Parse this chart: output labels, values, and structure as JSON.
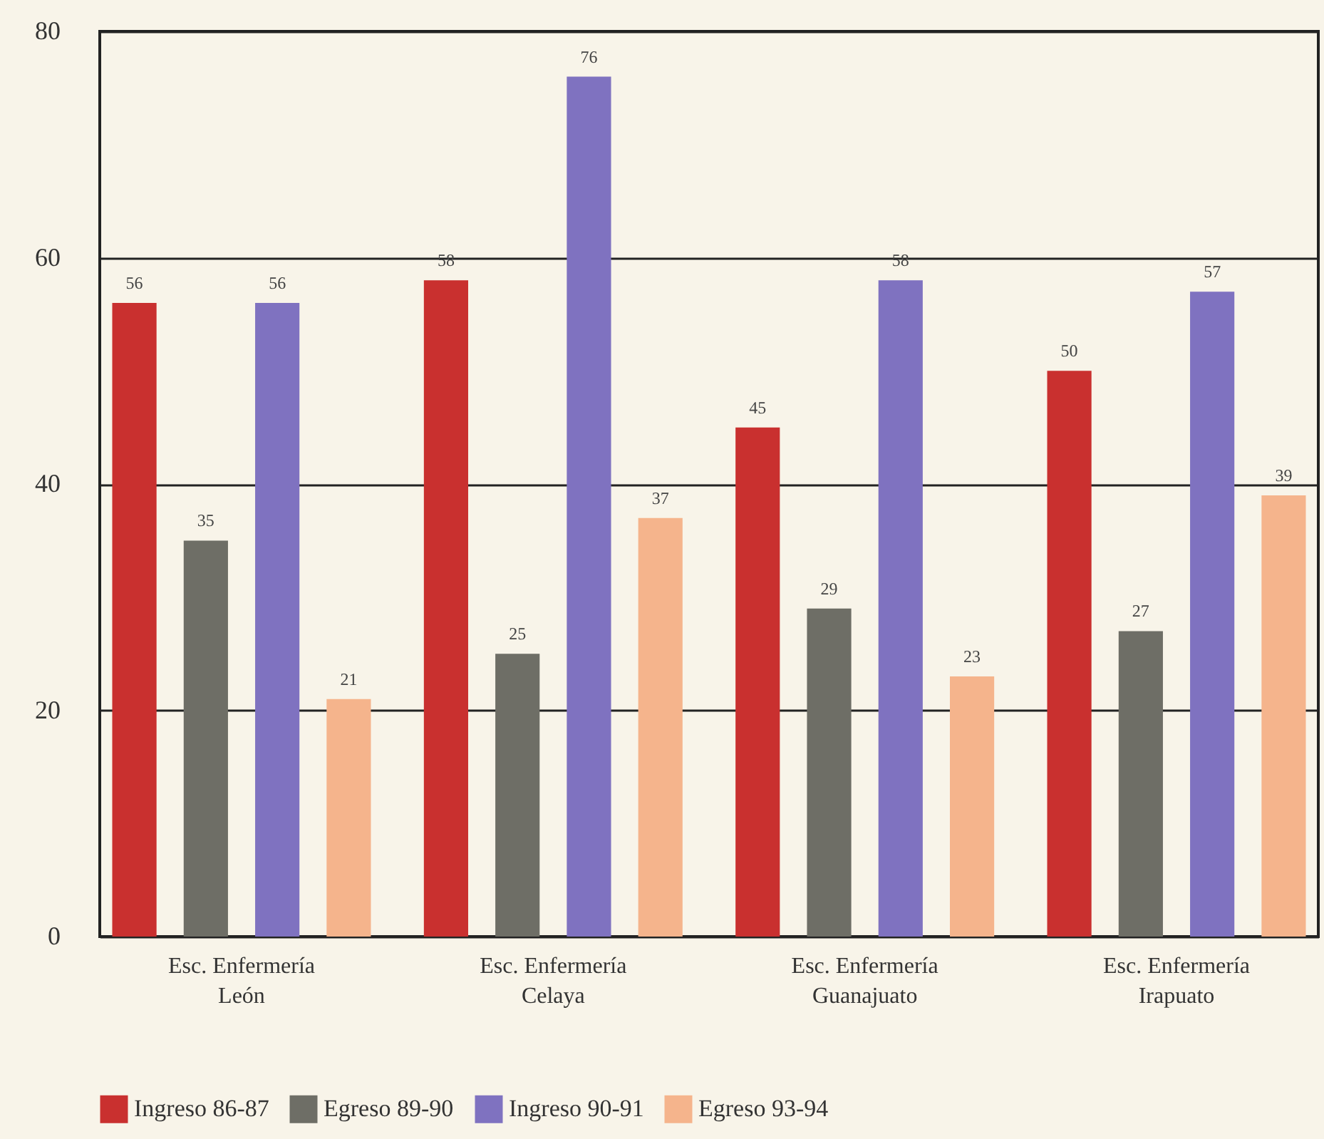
{
  "chart_data": {
    "type": "bar",
    "categories": [
      "Esc. Enfermería\nLeón",
      "Esc. Enfermería\nCelaya",
      "Esc. Enfermería\nGuanajuato",
      "Esc. Enfermería\nIrapuato"
    ],
    "series": [
      {
        "name": "Ingreso 86-87",
        "color": "#c9302f",
        "values": [
          56,
          58,
          45,
          50
        ]
      },
      {
        "name": "Egreso 89-90",
        "color": "#6e6e66",
        "values": [
          35,
          25,
          29,
          27
        ]
      },
      {
        "name": "Ingreso 90-91",
        "color": "#7f72c0",
        "values": [
          56,
          76,
          58,
          57
        ]
      },
      {
        "name": "Egreso 93-94",
        "color": "#f5b48c",
        "values": [
          21,
          37,
          23,
          39
        ]
      }
    ],
    "ylim": [
      0,
      80
    ],
    "yticks": [
      0,
      20,
      40,
      60,
      80
    ],
    "grid": "y",
    "legend": "bottom",
    "data_labels": true
  }
}
